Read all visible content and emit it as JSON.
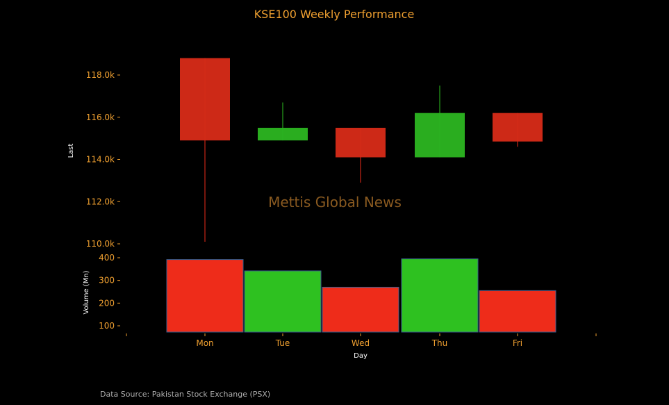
{
  "chart_data": [
    {
      "type": "candlestick",
      "title": "KSE100 Weekly Performance",
      "xlabel": "",
      "ylabel": "Last",
      "categories": [
        "Mon",
        "Tue",
        "Wed",
        "Thu",
        "Fri"
      ],
      "ylim": [
        110000,
        119000
      ],
      "yticks": [
        110000,
        112000,
        114000,
        116000,
        118000
      ],
      "ytick_labels": [
        "110.0k",
        "112.0k",
        "114.0k",
        "116.0k",
        "118.0k"
      ],
      "candles": [
        {
          "day": "Mon",
          "open": 118800,
          "high": 118800,
          "low": 110100,
          "close": 114900,
          "direction": "down"
        },
        {
          "day": "Tue",
          "open": 114900,
          "high": 116700,
          "low": 114900,
          "close": 115500,
          "direction": "up"
        },
        {
          "day": "Wed",
          "open": 115500,
          "high": 115500,
          "low": 112900,
          "close": 114100,
          "direction": "down"
        },
        {
          "day": "Thu",
          "open": 114100,
          "high": 117500,
          "low": 114100,
          "close": 116200,
          "direction": "up"
        },
        {
          "day": "Fri",
          "open": 116200,
          "high": 116200,
          "low": 114600,
          "close": 114850,
          "direction": "down"
        }
      ]
    },
    {
      "type": "bar",
      "xlabel": "Day",
      "ylabel": "Volume (Mn)",
      "categories": [
        "Mon",
        "Tue",
        "Wed",
        "Thu",
        "Fri"
      ],
      "values": [
        392,
        342,
        270,
        395,
        255
      ],
      "ylim": [
        73,
        420
      ],
      "yticks": [
        100,
        200,
        300,
        400
      ],
      "ytick_labels": [
        "100",
        "200",
        "300",
        "400"
      ]
    }
  ],
  "watermark": "Mettis Global News",
  "footnote": "Data Source: Pakistan Stock Exchange (PSX)",
  "colors": {
    "background": "#000000",
    "title": "#f0a030",
    "tick_label": "#f0a030",
    "axis_label": "#ffffff",
    "up": "#2ec120",
    "down": "#ee2c1a",
    "candle_up": "#2bb320",
    "candle_down": "#d42a18",
    "bar_edge": "#3a5f8f",
    "watermark": "#8a5a20",
    "footnote": "#b0b0b0"
  }
}
